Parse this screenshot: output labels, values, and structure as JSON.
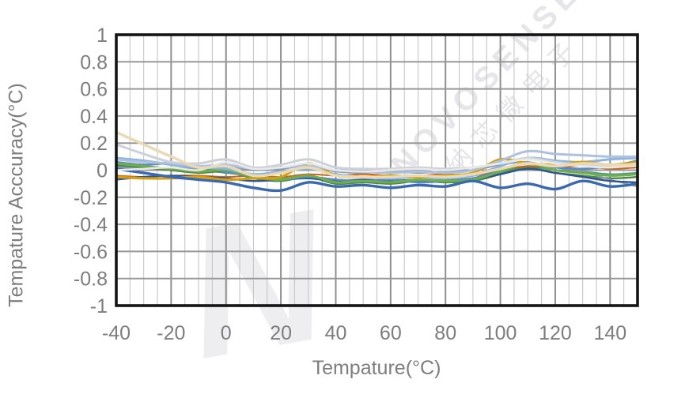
{
  "chart_data": {
    "type": "line",
    "title": "",
    "xlabel": "Tempature(°C)",
    "ylabel": "Tempature Acccuracy(°C)",
    "xlim": [
      -40,
      150
    ],
    "ylim": [
      -1,
      1
    ],
    "x_major_step": 20,
    "x_minor_step": 5,
    "y_grid_step": 0.2,
    "grid": {
      "on": true,
      "major_color": "#8f8f8f",
      "minor_color": "#c6c6c6",
      "horizontal_color": "#989898",
      "border_color": "#141414"
    },
    "legend": "none",
    "axis_text_color": "#7d7d7d",
    "x_tick_labels": [
      "-40",
      "-20",
      "0",
      "20",
      "40",
      "60",
      "80",
      "100",
      "120",
      "140"
    ],
    "x_tick_values": [
      -40,
      -20,
      0,
      20,
      40,
      60,
      80,
      100,
      120,
      140
    ],
    "y_tick_labels": [
      "1",
      "0.8",
      "0.6",
      "0.4",
      "0.2",
      "0",
      "-0.2",
      "-0.4",
      "-0.6",
      "-0.8",
      "-1"
    ],
    "y_tick_values": [
      1,
      0.8,
      0.6,
      0.4,
      0.2,
      0,
      -0.2,
      -0.4,
      -0.6,
      -0.8,
      -1
    ],
    "x": [
      -40,
      -30,
      -20,
      -10,
      0,
      10,
      20,
      30,
      40,
      50,
      60,
      70,
      80,
      90,
      100,
      110,
      120,
      130,
      140,
      150
    ],
    "series": [
      {
        "name": "teal",
        "color": "#4f998f",
        "width": 2.2,
        "values": [
          0.03,
          0.02,
          0.01,
          0.0,
          -0.02,
          -0.04,
          -0.06,
          -0.05,
          -0.07,
          -0.08,
          -0.07,
          -0.08,
          -0.07,
          -0.06,
          -0.02,
          0.03,
          0.0,
          -0.01,
          -0.03,
          -0.02
        ]
      },
      {
        "name": "dark-green",
        "color": "#4e8748",
        "width": 2.4,
        "values": [
          0.04,
          0.02,
          0.0,
          -0.02,
          -0.01,
          -0.06,
          -0.08,
          -0.05,
          -0.1,
          -0.09,
          -0.1,
          -0.08,
          -0.09,
          -0.08,
          -0.03,
          0.02,
          -0.02,
          -0.04,
          -0.06,
          -0.05
        ]
      },
      {
        "name": "orange",
        "color": "#c9651d",
        "width": 2.0,
        "values": [
          -0.04,
          -0.05,
          -0.04,
          -0.04,
          -0.05,
          -0.04,
          -0.05,
          -0.03,
          -0.04,
          -0.03,
          -0.04,
          -0.04,
          -0.03,
          -0.04,
          0.0,
          0.03,
          0.02,
          0.03,
          0.01,
          0.02
        ]
      },
      {
        "name": "gray",
        "color": "#8d9aa8",
        "width": 2.2,
        "values": [
          0.02,
          0.01,
          0.02,
          0.01,
          0.03,
          0.0,
          0.01,
          0.03,
          -0.01,
          -0.02,
          -0.01,
          -0.02,
          -0.01,
          0.0,
          0.04,
          0.06,
          0.02,
          -0.01,
          -0.07,
          -0.12
        ]
      },
      {
        "name": "navy",
        "color": "#2e5493",
        "width": 2.4,
        "values": [
          -0.07,
          -0.05,
          -0.04,
          -0.05,
          -0.06,
          -0.08,
          -0.07,
          -0.06,
          -0.08,
          -0.07,
          -0.08,
          -0.07,
          -0.08,
          -0.07,
          -0.03,
          0.01,
          -0.02,
          -0.05,
          -0.08,
          -0.09
        ]
      },
      {
        "name": "cornflower",
        "color": "#5b88c4",
        "width": 2.6,
        "values": [
          0.06,
          0.04,
          0.05,
          0.02,
          -0.01,
          -0.05,
          -0.07,
          -0.05,
          -0.07,
          -0.08,
          -0.07,
          -0.09,
          -0.08,
          -0.06,
          0.0,
          0.05,
          0.02,
          0.01,
          0.03,
          0.07
        ]
      },
      {
        "name": "green",
        "color": "#6fae4a",
        "width": 3.0,
        "values": [
          0.05,
          0.03,
          0.01,
          -0.01,
          0.0,
          -0.05,
          -0.07,
          -0.04,
          -0.09,
          -0.08,
          -0.09,
          -0.07,
          -0.08,
          -0.07,
          -0.01,
          0.05,
          0.0,
          -0.02,
          -0.04,
          -0.03
        ]
      },
      {
        "name": "light-blue",
        "color": "#8db4dc",
        "width": 3.0,
        "values": [
          0.09,
          0.07,
          0.04,
          0.02,
          0.01,
          -0.03,
          -0.01,
          0.01,
          -0.03,
          -0.05,
          -0.06,
          -0.05,
          -0.06,
          -0.04,
          0.03,
          0.09,
          0.07,
          0.06,
          0.08,
          0.09
        ]
      },
      {
        "name": "gold",
        "color": "#d3a012",
        "width": 3.2,
        "values": [
          -0.05,
          -0.06,
          -0.06,
          -0.05,
          -0.07,
          -0.06,
          -0.05,
          0.05,
          -0.04,
          -0.05,
          -0.04,
          -0.05,
          -0.04,
          -0.02,
          0.08,
          0.05,
          0.04,
          0.06,
          0.04,
          0.06
        ]
      },
      {
        "name": "blue",
        "color": "#3a69ae",
        "width": 3.4,
        "values": [
          0.01,
          -0.02,
          -0.05,
          -0.07,
          -0.09,
          -0.13,
          -0.15,
          -0.09,
          -0.12,
          -0.11,
          -0.13,
          -0.11,
          -0.12,
          -0.08,
          -0.13,
          -0.1,
          -0.14,
          -0.08,
          -0.12,
          -0.1
        ]
      },
      {
        "name": "pale-blue",
        "color": "#aec0e0",
        "width": 3.0,
        "values": [
          0.08,
          0.06,
          0.05,
          0.03,
          0.04,
          0.01,
          0.02,
          0.03,
          0.0,
          -0.01,
          -0.02,
          -0.01,
          -0.02,
          0.0,
          0.07,
          0.14,
          0.12,
          0.11,
          0.1,
          0.1
        ]
      },
      {
        "name": "silver",
        "color": "#cdd0d9",
        "width": 3.0,
        "values": [
          0.19,
          0.12,
          0.06,
          0.05,
          0.08,
          0.02,
          0.04,
          0.08,
          0.02,
          0.01,
          0.01,
          0.02,
          0.01,
          0.02,
          0.05,
          0.09,
          0.06,
          0.04,
          0.03,
          0.05
        ]
      },
      {
        "name": "white",
        "color": "#e9e9e7",
        "width": 2.6,
        "values": [
          0.0,
          0.01,
          0.02,
          0.0,
          0.06,
          0.01,
          0.02,
          0.05,
          0.0,
          -0.01,
          0.0,
          0.01,
          0.0,
          0.02,
          0.05,
          0.08,
          0.05,
          0.03,
          0.02,
          0.04
        ]
      },
      {
        "name": "wheat",
        "color": "#ead9b5",
        "width": 3.5,
        "values": [
          0.28,
          0.19,
          0.1,
          0.02,
          0.03,
          -0.04,
          -0.02,
          0.02,
          -0.04,
          -0.05,
          -0.05,
          -0.04,
          -0.05,
          -0.03,
          0.01,
          0.05,
          0.03,
          0.05,
          0.04,
          0.04
        ]
      }
    ]
  },
  "watermark": {
    "logo_letter": "N",
    "line1": "NOVOSENSE",
    "line2": "纳芯微电子"
  }
}
